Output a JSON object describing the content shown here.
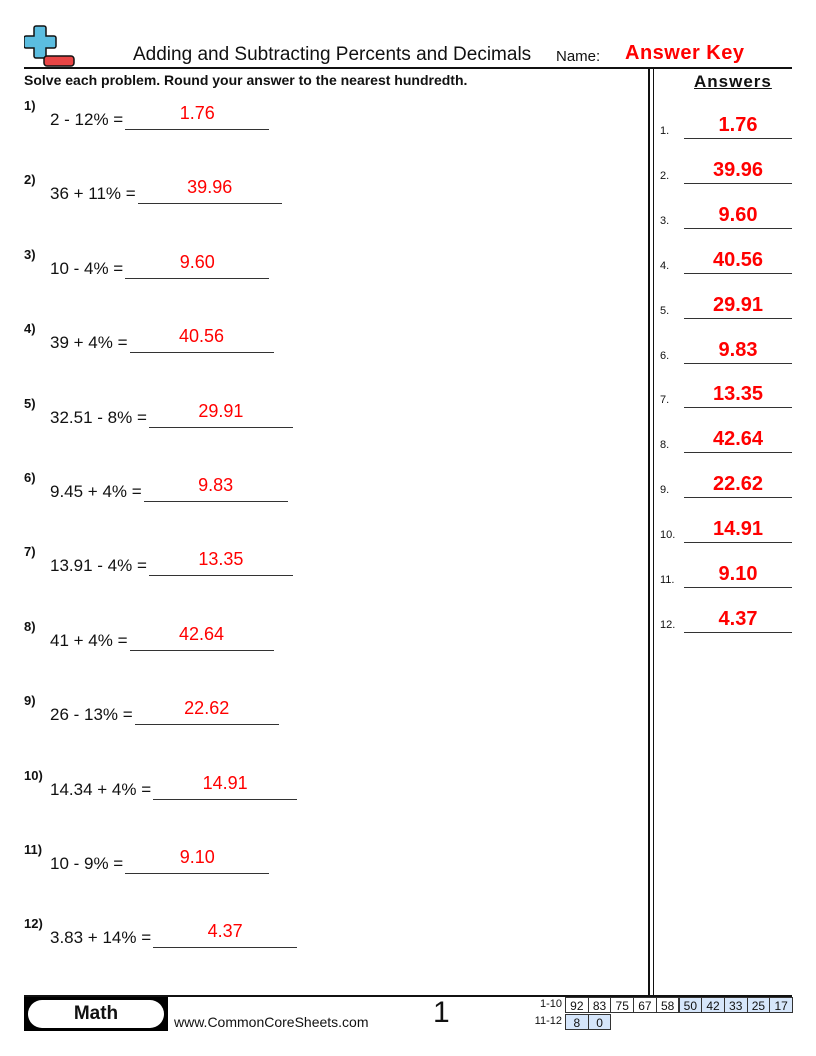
{
  "header": {
    "logo_icon": "plus-minus-logo-icon",
    "title": "Adding and Subtracting Percents and Decimals",
    "name_label": "Name:",
    "name_value": "Answer Key",
    "instructions": "Solve each problem. Round your answer to the nearest hundredth.",
    "answers_heading": "Answers"
  },
  "colors": {
    "answer": "#ff0000",
    "logo_plus": "#5bbde0",
    "logo_minus": "#e84545",
    "score_highlight": "#d6e6fb"
  },
  "problems": [
    {
      "num": "1)",
      "expr": "2 - 12% =",
      "answer": "1.76"
    },
    {
      "num": "2)",
      "expr": "36 + 11% =",
      "answer": "39.96"
    },
    {
      "num": "3)",
      "expr": "10 - 4% =",
      "answer": "9.60"
    },
    {
      "num": "4)",
      "expr": "39 + 4% =",
      "answer": "40.56"
    },
    {
      "num": "5)",
      "expr": "32.51 - 8% =",
      "answer": "29.91"
    },
    {
      "num": "6)",
      "expr": "9.45 + 4% =",
      "answer": "9.83"
    },
    {
      "num": "7)",
      "expr": "13.91 - 4% =",
      "answer": "13.35"
    },
    {
      "num": "8)",
      "expr": "41 + 4% =",
      "answer": "42.64"
    },
    {
      "num": "9)",
      "expr": "26 - 13% =",
      "answer": "22.62"
    },
    {
      "num": "10)",
      "expr": "14.34 + 4% =",
      "answer": "14.91"
    },
    {
      "num": "11)",
      "expr": "10 - 9% =",
      "answer": "9.10"
    },
    {
      "num": "12)",
      "expr": "3.83 + 14% =",
      "answer": "4.37"
    }
  ],
  "answer_key": [
    {
      "num": "1.",
      "answer": "1.76"
    },
    {
      "num": "2.",
      "answer": "39.96"
    },
    {
      "num": "3.",
      "answer": "9.60"
    },
    {
      "num": "4.",
      "answer": "40.56"
    },
    {
      "num": "5.",
      "answer": "29.91"
    },
    {
      "num": "6.",
      "answer": "9.83"
    },
    {
      "num": "7.",
      "answer": "13.35"
    },
    {
      "num": "8.",
      "answer": "42.64"
    },
    {
      "num": "9.",
      "answer": "22.62"
    },
    {
      "num": "10.",
      "answer": "14.91"
    },
    {
      "num": "11.",
      "answer": "9.10"
    },
    {
      "num": "12.",
      "answer": "4.37"
    }
  ],
  "footer": {
    "subject": "Math",
    "website": "www.CommonCoreSheets.com",
    "page_number": "1",
    "score_rows": [
      {
        "label": "1-10",
        "cells": [
          {
            "v": "92",
            "hl": false
          },
          {
            "v": "83",
            "hl": false
          },
          {
            "v": "75",
            "hl": false
          },
          {
            "v": "67",
            "hl": false
          },
          {
            "v": "58",
            "hl": false
          },
          {
            "v": "50",
            "hl": true
          },
          {
            "v": "42",
            "hl": true
          },
          {
            "v": "33",
            "hl": true
          },
          {
            "v": "25",
            "hl": true
          },
          {
            "v": "17",
            "hl": true
          }
        ]
      },
      {
        "label": "11-12",
        "cells": [
          {
            "v": "8",
            "hl": true
          },
          {
            "v": "0",
            "hl": true
          }
        ]
      }
    ]
  }
}
